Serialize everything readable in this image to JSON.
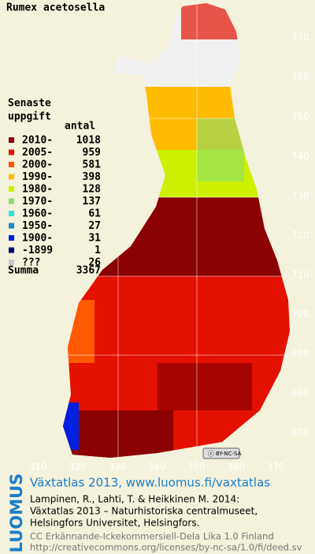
{
  "title": "Rumex acetosella",
  "legend": {
    "title_lines": [
      "Senaste",
      "uppgift"
    ],
    "count_header": "antal",
    "rows": [
      {
        "label": "2010-",
        "count": 1018,
        "color": "#8b0000"
      },
      {
        "label": "2005-",
        "count": 959,
        "color": "#e41000"
      },
      {
        "label": "2000-",
        "count": 581,
        "color": "#ff5a00"
      },
      {
        "label": "1990-",
        "count": 398,
        "color": "#ffbb00"
      },
      {
        "label": "1980-",
        "count": 128,
        "color": "#ccf000"
      },
      {
        "label": "1970-",
        "count": 137,
        "color": "#88e070"
      },
      {
        "label": "1960-",
        "count": 61,
        "color": "#30e0e0"
      },
      {
        "label": "1950-",
        "count": 27,
        "color": "#1090d0"
      },
      {
        "label": "1900-",
        "count": 31,
        "color": "#0020e0"
      },
      {
        "label": "-1899",
        "count": 1,
        "color": "#000070"
      },
      {
        "label": "???",
        "count": 26,
        "color": "#c8c8c8"
      }
    ],
    "total": {
      "label": "Summa",
      "count": 3367
    }
  },
  "xticks": [
    310,
    320,
    330,
    340,
    350,
    360,
    370
  ],
  "yticks": [
    670,
    680,
    690,
    700,
    710,
    720,
    730,
    740,
    750,
    760,
    770
  ],
  "badge": "BY-NC-SA",
  "footer": {
    "logo": "LUOMUS",
    "heading": "Växtatlas 2013, www.luomus.fi/vaxtatlas",
    "citation": [
      "Lampinen, R., Lahti, T. & Heikkinen M. 2014:",
      "Växtatlas 2013 – Naturhistoriska centralmuseet,",
      "Helsingfors Universitet, Helsingfors."
    ],
    "license": [
      "CC Erkännande-Ickekommersiell-Dela Lika 1.0 Finland",
      "http://creativecommons.org/licenses/by-nc-sa/1.0/fi/deed.sv"
    ]
  }
}
